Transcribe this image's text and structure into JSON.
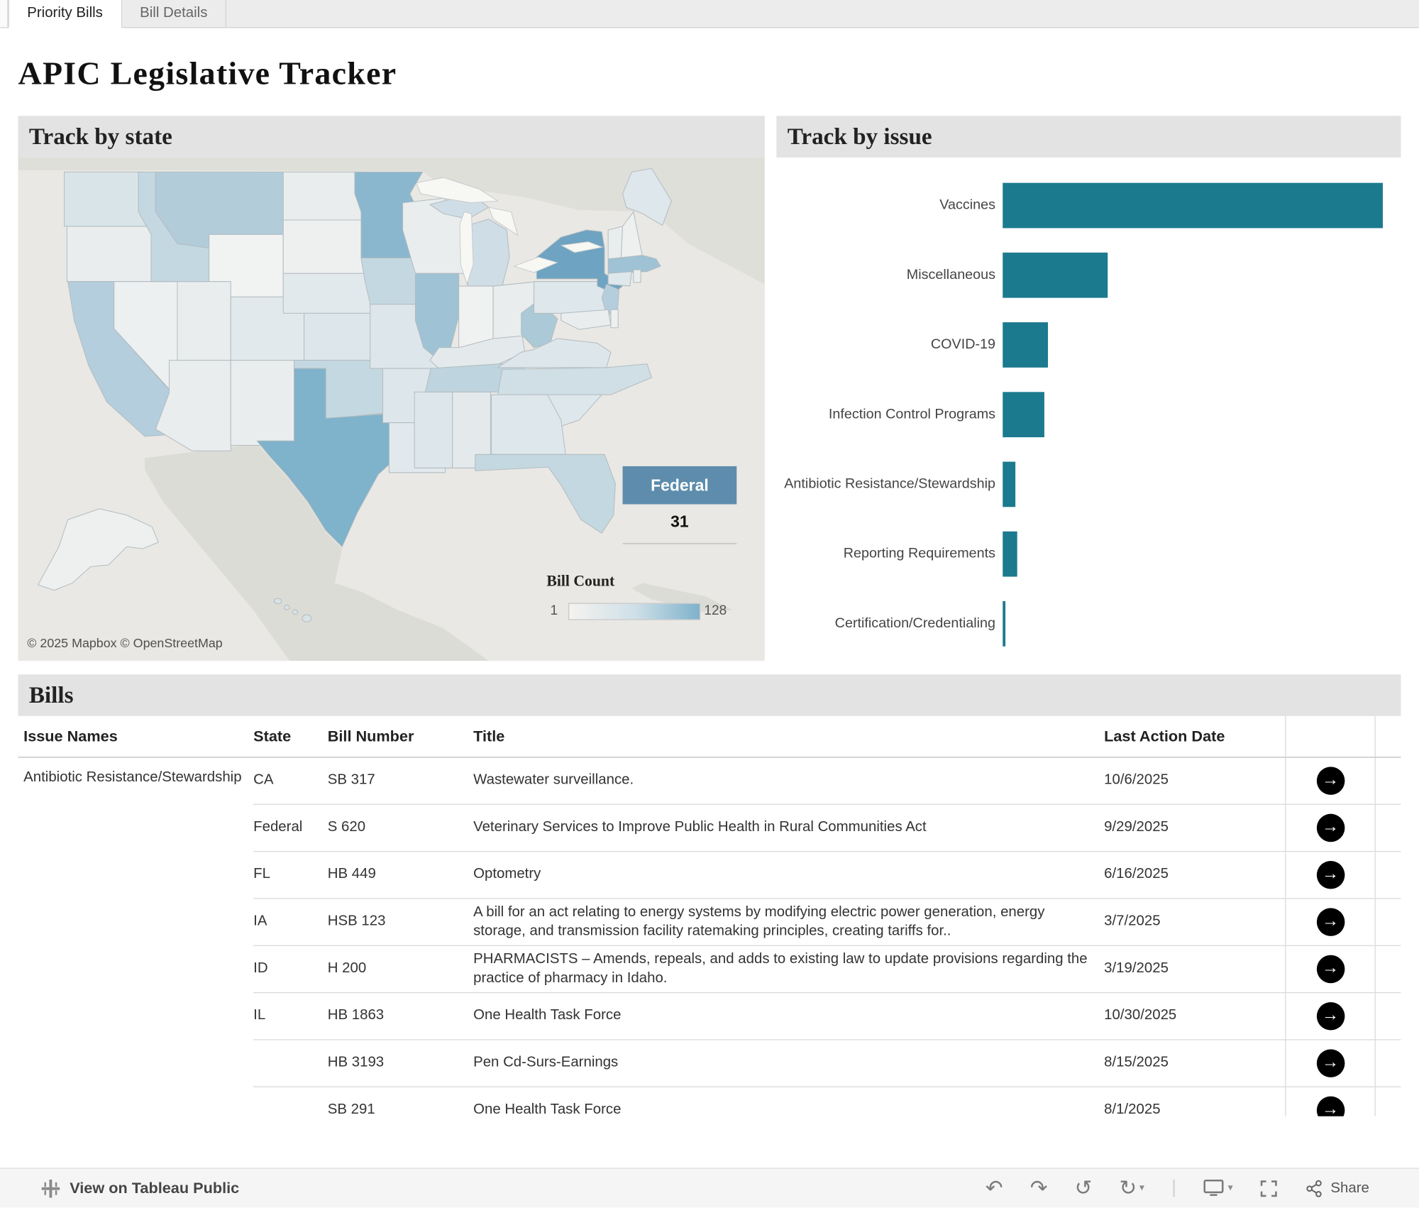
{
  "tabs": [
    {
      "label": "Priority Bills",
      "active": true
    },
    {
      "label": "Bill Details",
      "active": false
    }
  ],
  "title": "APIC Legislative Tracker",
  "map_panel": {
    "title": "Track by state",
    "federal_label": "Federal",
    "federal_count": "31",
    "legend_title": "Bill Count",
    "legend_min": "1",
    "legend_max": "128",
    "attribution": "© 2025 Mapbox  © OpenStreetMap"
  },
  "issue_panel": {
    "title": "Track by issue"
  },
  "chart_data": [
    {
      "type": "bar",
      "orientation": "horizontal",
      "title": "Track by issue",
      "categories": [
        "Vaccines",
        "Miscellaneous",
        "COVID-19",
        "Infection Control Programs",
        "Antibiotic Resistance/Stewardship",
        "Reporting Requirements",
        "Certification/Credentialing"
      ],
      "values": [
        420,
        116,
        50,
        46,
        14,
        16,
        3
      ],
      "units": "relative bar length (axis unlabeled)",
      "bar_color": "#1b7a8e",
      "grid": false,
      "legend_position": "none"
    },
    {
      "type": "heatmap",
      "subtype": "us-choropleth",
      "title": "Track by state",
      "colorbar_title": "Bill Count",
      "range": [
        1,
        128
      ],
      "federal_value": 31,
      "highest_states": [
        "TX",
        "MN",
        "NY"
      ],
      "mid_states": [
        "CA",
        "MT",
        "IL",
        "WV",
        "MA",
        "TN",
        "OK",
        "IA",
        "ID",
        "MI",
        "NJ",
        "FL"
      ],
      "palette": [
        "#f2f1ec",
        "#7fb2cb"
      ]
    }
  ],
  "bills": {
    "title": "Bills",
    "columns": [
      "Issue Names",
      "State",
      "Bill Number",
      "Title",
      "Last Action Date"
    ],
    "issue_group": "Antibiotic Resistance/Stewardship",
    "rows": [
      {
        "state": "CA",
        "bill": "SB 317",
        "title": "Wastewater surveillance.",
        "date": "10/6/2025"
      },
      {
        "state": "Federal",
        "bill": "S 620",
        "title": "Veterinary Services to Improve Public Health in Rural Communities Act",
        "date": "9/29/2025"
      },
      {
        "state": "FL",
        "bill": "HB 449",
        "title": "Optometry",
        "date": "6/16/2025"
      },
      {
        "state": "IA",
        "bill": "HSB 123",
        "title": "A bill for an act relating to energy systems by modifying electric power generation, energy storage, and transmission facility ratemaking principles, creating tariffs for..",
        "date": "3/7/2025"
      },
      {
        "state": "ID",
        "bill": "H 200",
        "title": "PHARMACISTS – Amends, repeals, and adds to existing law to update provisions regarding the practice of pharmacy in Idaho.",
        "date": "3/19/2025"
      },
      {
        "state": "IL",
        "bill": "HB 1863",
        "title": "One Health Task Force",
        "date": "10/30/2025"
      },
      {
        "state": "",
        "bill": "HB 3193",
        "title": "Pen Cd-Surs-Earnings",
        "date": "8/15/2025"
      },
      {
        "state": "",
        "bill": "SB 291",
        "title": "One Health Task Force",
        "date": "8/1/2025"
      }
    ]
  },
  "toolbar": {
    "view_label": "View on Tableau Public",
    "share_label": "Share",
    "icons": [
      "undo",
      "redo",
      "replay",
      "refresh",
      "device-preview",
      "fullscreen",
      "share"
    ]
  },
  "colors": {
    "bar_teal": "#1b7a8e",
    "federal_badge": "#5d8cac",
    "panel_header_bg": "#e3e3e3",
    "map_high": "#7fb2cb"
  }
}
